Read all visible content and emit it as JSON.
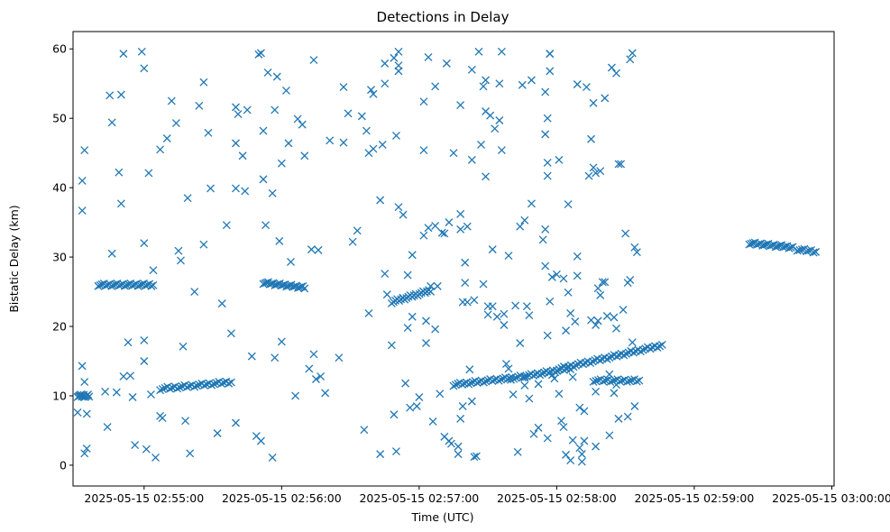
{
  "chart_data": {
    "type": "scatter",
    "title": "Detections in Delay",
    "xlabel": "Time (UTC)",
    "ylabel": "Bistatic Delay (km)",
    "x_unit": "seconds after 2025-05-15 02:54:30",
    "xlim": [
      -1,
      331
    ],
    "ylim": [
      -3,
      62.5
    ],
    "x_ticks": [
      {
        "value": 30,
        "label": "2025-05-15 02:55:00"
      },
      {
        "value": 90,
        "label": "2025-05-15 02:56:00"
      },
      {
        "value": 150,
        "label": "2025-05-15 02:57:00"
      },
      {
        "value": 210,
        "label": "2025-05-15 02:58:00"
      },
      {
        "value": 270,
        "label": "2025-05-15 02:59:00"
      },
      {
        "value": 330,
        "label": "2025-05-15 03:00:00"
      }
    ],
    "y_ticks": [
      {
        "value": 0,
        "label": "0"
      },
      {
        "value": 10,
        "label": "10"
      },
      {
        "value": 20,
        "label": "20"
      },
      {
        "value": 30,
        "label": "30"
      },
      {
        "value": 40,
        "label": "40"
      },
      {
        "value": 50,
        "label": "50"
      },
      {
        "value": 60,
        "label": "60"
      }
    ],
    "marker": "x",
    "color": "#1f77b4",
    "tracks": [
      {
        "name": "track-a",
        "x_start": 1,
        "x_end": 6,
        "y_start": 10,
        "y_end": 10,
        "count": 12
      },
      {
        "name": "track-b",
        "x_start": 10,
        "x_end": 34,
        "y_start": 26,
        "y_end": 26,
        "count": 30
      },
      {
        "name": "track-c",
        "x_start": 37,
        "x_end": 68,
        "y_start": 11,
        "y_end": 12,
        "count": 30
      },
      {
        "name": "track-d",
        "x_start": 82,
        "x_end": 100,
        "y_start": 26.3,
        "y_end": 25.6,
        "count": 26
      },
      {
        "name": "track-e",
        "x_start": 138,
        "x_end": 155,
        "y_start": 23.5,
        "y_end": 25.2,
        "count": 22
      },
      {
        "name": "track-f",
        "x_start": 165,
        "x_end": 196,
        "y_start": 11.6,
        "y_end": 12.8,
        "count": 34
      },
      {
        "name": "track-g",
        "x_start": 196,
        "x_end": 216,
        "y_start": 12.8,
        "y_end": 14.0,
        "count": 22
      },
      {
        "name": "track-h",
        "x_start": 210,
        "x_end": 256,
        "y_start": 13.8,
        "y_end": 17.3,
        "count": 45
      },
      {
        "name": "track-i",
        "x_start": 226,
        "x_end": 246,
        "y_start": 12.2,
        "y_end": 12.2,
        "count": 20
      },
      {
        "name": "track-j",
        "x_start": 294,
        "x_end": 313,
        "y_start": 32.0,
        "y_end": 31.4,
        "count": 24
      },
      {
        "name": "track-k",
        "x_start": 315,
        "x_end": 323,
        "y_start": 31.1,
        "y_end": 30.8,
        "count": 9
      }
    ],
    "points": [
      [
        1,
        7.6
      ],
      [
        2,
        10
      ],
      [
        3,
        14.3
      ],
      [
        3,
        41
      ],
      [
        3,
        36.7
      ],
      [
        4,
        45.4
      ],
      [
        4,
        1.7
      ],
      [
        4,
        12
      ],
      [
        5,
        7.4
      ],
      [
        5,
        2.4
      ],
      [
        13,
        10.6
      ],
      [
        14,
        5.5
      ],
      [
        15,
        53.3
      ],
      [
        16,
        49.4
      ],
      [
        16,
        30.5
      ],
      [
        18,
        10.5
      ],
      [
        19,
        42.2
      ],
      [
        20,
        37.7
      ],
      [
        20,
        53.4
      ],
      [
        21,
        59.3
      ],
      [
        21,
        12.8
      ],
      [
        23,
        17.7
      ],
      [
        24,
        12.9
      ],
      [
        25,
        9.8
      ],
      [
        26,
        2.9
      ],
      [
        29,
        59.6
      ],
      [
        30,
        57.2
      ],
      [
        30,
        32
      ],
      [
        30,
        18
      ],
      [
        30,
        15
      ],
      [
        31,
        2.3
      ],
      [
        32,
        42.1
      ],
      [
        33,
        10.2
      ],
      [
        34,
        28.1
      ],
      [
        35,
        1.1
      ],
      [
        37,
        45.5
      ],
      [
        37,
        7.1
      ],
      [
        38,
        6.8
      ],
      [
        40,
        47.1
      ],
      [
        42,
        52.5
      ],
      [
        44,
        49.3
      ],
      [
        45,
        30.9
      ],
      [
        46,
        29.5
      ],
      [
        47,
        17.1
      ],
      [
        48,
        6.4
      ],
      [
        49,
        38.5
      ],
      [
        50,
        1.7
      ],
      [
        52,
        25
      ],
      [
        54,
        51.8
      ],
      [
        56,
        55.2
      ],
      [
        56,
        31.8
      ],
      [
        58,
        47.9
      ],
      [
        59,
        39.9
      ],
      [
        62,
        4.6
      ],
      [
        64,
        23.3
      ],
      [
        66,
        34.6
      ],
      [
        68,
        19
      ],
      [
        70,
        51.6
      ],
      [
        70,
        46.4
      ],
      [
        70,
        39.9
      ],
      [
        70,
        6.1
      ],
      [
        71,
        50.6
      ],
      [
        73,
        44.6
      ],
      [
        74,
        39.5
      ],
      [
        75,
        51.2
      ],
      [
        77,
        15.7
      ],
      [
        79,
        4.2
      ],
      [
        80,
        59.2
      ],
      [
        81,
        59.4
      ],
      [
        81,
        3.5
      ],
      [
        82,
        41.2
      ],
      [
        82,
        48.2
      ],
      [
        83,
        34.6
      ],
      [
        84,
        56.6
      ],
      [
        86,
        39.2
      ],
      [
        86,
        1.1
      ],
      [
        87,
        51.2
      ],
      [
        87,
        15.5
      ],
      [
        88,
        56
      ],
      [
        89,
        32.3
      ],
      [
        90,
        43.5
      ],
      [
        90,
        17.8
      ],
      [
        92,
        54
      ],
      [
        93,
        46.4
      ],
      [
        94,
        29.3
      ],
      [
        96,
        10
      ],
      [
        97,
        49.9
      ],
      [
        99,
        49.1
      ],
      [
        100,
        44.6
      ],
      [
        102,
        13.9
      ],
      [
        103,
        31.1
      ],
      [
        104,
        58.4
      ],
      [
        104,
        16
      ],
      [
        105,
        12.4
      ],
      [
        106,
        31
      ],
      [
        107,
        12.8
      ],
      [
        109,
        10.4
      ],
      [
        111,
        46.8
      ],
      [
        115,
        15.5
      ],
      [
        117,
        54.5
      ],
      [
        117,
        46.5
      ],
      [
        119,
        50.7
      ],
      [
        121,
        32.2
      ],
      [
        123,
        33.8
      ],
      [
        125,
        50.3
      ],
      [
        126,
        5.1
      ],
      [
        127,
        48.2
      ],
      [
        128,
        21.9
      ],
      [
        128,
        45
      ],
      [
        129,
        54.1
      ],
      [
        130,
        53.5
      ],
      [
        130,
        45.6
      ],
      [
        133,
        1.6
      ],
      [
        133,
        38.2
      ],
      [
        134,
        46.2
      ],
      [
        135,
        55
      ],
      [
        135,
        57.9
      ],
      [
        135,
        27.6
      ],
      [
        136,
        24.6
      ],
      [
        138,
        17.3
      ],
      [
        139,
        58.7
      ],
      [
        139,
        7.3
      ],
      [
        140,
        47.5
      ],
      [
        140,
        2
      ],
      [
        141,
        59.6
      ],
      [
        141,
        57.6
      ],
      [
        141,
        56.8
      ],
      [
        141,
        37.2
      ],
      [
        143,
        36.1
      ],
      [
        143,
        24.1
      ],
      [
        144,
        11.8
      ],
      [
        145,
        27.4
      ],
      [
        145,
        19.8
      ],
      [
        146,
        8.3
      ],
      [
        147,
        30.3
      ],
      [
        147,
        21.4
      ],
      [
        149,
        8.5
      ],
      [
        150,
        9.8
      ],
      [
        152,
        52.4
      ],
      [
        152,
        45.4
      ],
      [
        152,
        33.1
      ],
      [
        153,
        20.8
      ],
      [
        153,
        17.6
      ],
      [
        154,
        58.8
      ],
      [
        154,
        34.2
      ],
      [
        155,
        25.8
      ],
      [
        156,
        6.3
      ],
      [
        157,
        34.5
      ],
      [
        157,
        54.6
      ],
      [
        157,
        19.6
      ],
      [
        158,
        25.8
      ],
      [
        159,
        10.3
      ],
      [
        160,
        33.5
      ],
      [
        161,
        33.4
      ],
      [
        161,
        4.1
      ],
      [
        162,
        57.9
      ],
      [
        163,
        35
      ],
      [
        163,
        3.5
      ],
      [
        164,
        3.1
      ],
      [
        165,
        45
      ],
      [
        167,
        2.7
      ],
      [
        167,
        1.6
      ],
      [
        168,
        36.2
      ],
      [
        168,
        34
      ],
      [
        168,
        51.9
      ],
      [
        168,
        6.7
      ],
      [
        169,
        23.5
      ],
      [
        169,
        8.5
      ],
      [
        170,
        29.2
      ],
      [
        170,
        26.3
      ],
      [
        171,
        34.4
      ],
      [
        171,
        23.5
      ],
      [
        172,
        13.8
      ],
      [
        173,
        44
      ],
      [
        173,
        57
      ],
      [
        173,
        9.2
      ],
      [
        174,
        1.2
      ],
      [
        174,
        23.8
      ],
      [
        175,
        1.3
      ],
      [
        176,
        59.6
      ],
      [
        177,
        46.2
      ],
      [
        178,
        54.6
      ],
      [
        178,
        26.1
      ],
      [
        179,
        55.5
      ],
      [
        179,
        51
      ],
      [
        179,
        41.6
      ],
      [
        180,
        22.9
      ],
      [
        180,
        21.7
      ],
      [
        181,
        50.4
      ],
      [
        182,
        31.1
      ],
      [
        182,
        22.9
      ],
      [
        183,
        48.5
      ],
      [
        184,
        21.4
      ],
      [
        185,
        55
      ],
      [
        185,
        49.7
      ],
      [
        186,
        59.6
      ],
      [
        186,
        45.4
      ],
      [
        187,
        21.8
      ],
      [
        187,
        20.2
      ],
      [
        188,
        14.6
      ],
      [
        189,
        30.2
      ],
      [
        189,
        13.9
      ],
      [
        190,
        12.3
      ],
      [
        191,
        10.2
      ],
      [
        192,
        23
      ],
      [
        193,
        1.9
      ],
      [
        194,
        34.4
      ],
      [
        194,
        17.6
      ],
      [
        195,
        54.8
      ],
      [
        196,
        35.3
      ],
      [
        196,
        11.5
      ],
      [
        197,
        22.9
      ],
      [
        198,
        21.6
      ],
      [
        198,
        9.6
      ],
      [
        199,
        55.5
      ],
      [
        199,
        37.7
      ],
      [
        200,
        4.5
      ],
      [
        202,
        11.7
      ],
      [
        202,
        5.4
      ],
      [
        204,
        32.5
      ],
      [
        205,
        53.8
      ],
      [
        205,
        47.7
      ],
      [
        205,
        34
      ],
      [
        205,
        28.7
      ],
      [
        206,
        50
      ],
      [
        206,
        43.6
      ],
      [
        206,
        41.7
      ],
      [
        206,
        18.7
      ],
      [
        206,
        3.9
      ],
      [
        207,
        59.3
      ],
      [
        207,
        59.3
      ],
      [
        207,
        56.8
      ],
      [
        207,
        23.6
      ],
      [
        208,
        13
      ],
      [
        208,
        27.1
      ],
      [
        209,
        12.5
      ],
      [
        210,
        27.5
      ],
      [
        211,
        10.3
      ],
      [
        211,
        44
      ],
      [
        212,
        6.4
      ],
      [
        213,
        26.9
      ],
      [
        213,
        5.5
      ],
      [
        214,
        19.4
      ],
      [
        214,
        1.5
      ],
      [
        215,
        37.6
      ],
      [
        215,
        24.9
      ],
      [
        216,
        0.7
      ],
      [
        216,
        21.9
      ],
      [
        217,
        3.6
      ],
      [
        217,
        12.7
      ],
      [
        218,
        20.7
      ],
      [
        219,
        54.9
      ],
      [
        219,
        30.1
      ],
      [
        219,
        27.3
      ],
      [
        220,
        8.3
      ],
      [
        220,
        2.5
      ],
      [
        221,
        1.6
      ],
      [
        221,
        0.5
      ],
      [
        222,
        7.8
      ],
      [
        222,
        3.5
      ],
      [
        223,
        54.5
      ],
      [
        224,
        41.7
      ],
      [
        225,
        47
      ],
      [
        225,
        20.9
      ],
      [
        226,
        42.9
      ],
      [
        226,
        52.2
      ],
      [
        227,
        10.6
      ],
      [
        227,
        42.1
      ],
      [
        227,
        20.2
      ],
      [
        227,
        2.7
      ],
      [
        228,
        20.8
      ],
      [
        228,
        25.5
      ],
      [
        229,
        42.4
      ],
      [
        229,
        24.5
      ],
      [
        230,
        26.4
      ],
      [
        231,
        52.9
      ],
      [
        231,
        26.4
      ],
      [
        232,
        21.5
      ],
      [
        233,
        13.1
      ],
      [
        233,
        4.3
      ],
      [
        234,
        57.3
      ],
      [
        235,
        21.3
      ],
      [
        235,
        10.4
      ],
      [
        236,
        56.5
      ],
      [
        236,
        19.7
      ],
      [
        236,
        11.6
      ],
      [
        237,
        43.4
      ],
      [
        237,
        6.7
      ],
      [
        238,
        43.4
      ],
      [
        239,
        22.4
      ],
      [
        240,
        33.4
      ],
      [
        241,
        26.3
      ],
      [
        241,
        7
      ],
      [
        242,
        26.7
      ],
      [
        242,
        58.5
      ],
      [
        243,
        59.4
      ],
      [
        243,
        17.7
      ],
      [
        244,
        8.5
      ],
      [
        244,
        31.4
      ],
      [
        245,
        30.7
      ]
    ]
  }
}
